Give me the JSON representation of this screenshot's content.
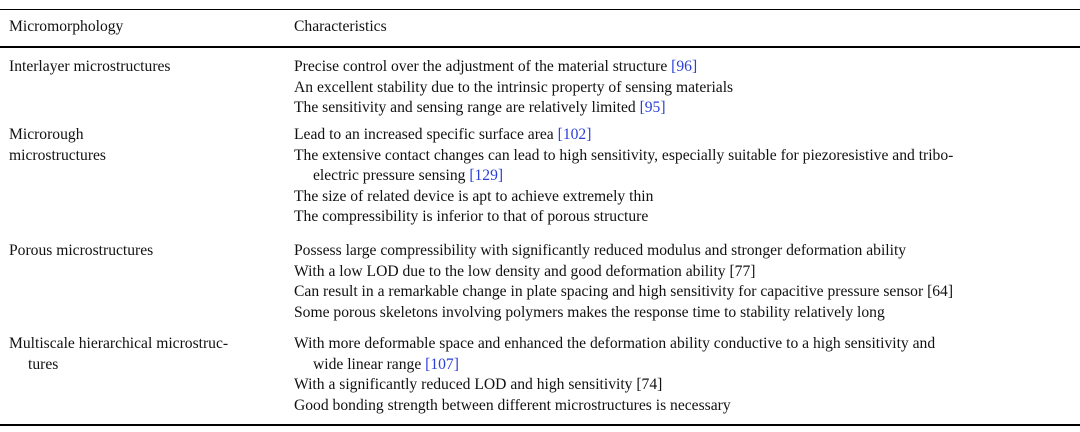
{
  "table": {
    "headers": {
      "micromorphology": "Micromorphology",
      "characteristics": "Characteristics"
    },
    "rows": [
      {
        "name_lines": [
          "Interlayer microstructures"
        ],
        "items": [
          {
            "lines": [
              "Precise control over the adjustment of the material structure "
            ],
            "ref": "[96]"
          },
          {
            "lines": [
              "An excellent stability due to the intrinsic property of sensing materials"
            ],
            "ref": ""
          },
          {
            "lines": [
              "The sensitivity and sensing range are relatively limited "
            ],
            "ref": "[95]"
          }
        ]
      },
      {
        "name_lines": [
          "Microrough",
          "microstructures"
        ],
        "items": [
          {
            "lines": [
              "Lead to an increased specific surface area "
            ],
            "ref": "[102]"
          },
          {
            "lines": [
              "The extensive contact changes can lead to high sensitivity, especially suitable for piezoresistive and tribo-",
              "electric pressure sensing "
            ],
            "ref": "[129]"
          },
          {
            "lines": [
              "The size of related device is apt to achieve extremely thin"
            ],
            "ref": ""
          },
          {
            "lines": [
              "The compressibility is inferior to that of porous structure"
            ],
            "ref": ""
          }
        ]
      },
      {
        "name_lines": [
          "Porous microstructures"
        ],
        "items": [
          {
            "lines": [
              "Possess large compressibility with significantly reduced modulus and stronger deformation ability"
            ],
            "ref": ""
          },
          {
            "lines": [
              "With a low LOD due to the low density and good deformation ability [77]"
            ],
            "ref": ""
          },
          {
            "lines": [
              "Can result in a remarkable change in plate spacing and high sensitivity for capacitive pressure sensor [64]"
            ],
            "ref": ""
          },
          {
            "lines": [
              "Some porous skeletons involving polymers makes the response time to stability relatively long"
            ],
            "ref": ""
          }
        ]
      },
      {
        "name_lines": [
          "Multiscale hierarchical microstruc-",
          "tures"
        ],
        "items": [
          {
            "lines": [
              "With more deformable space and enhanced the deformation ability conductive to a high sensitivity and",
              "wide linear range "
            ],
            "ref": "[107]"
          },
          {
            "lines": [
              "With a significantly reduced LOD and high sensitivity [74]"
            ],
            "ref": ""
          },
          {
            "lines": [
              "Good bonding strength between different microstructures is necessary"
            ],
            "ref": ""
          }
        ]
      }
    ]
  }
}
